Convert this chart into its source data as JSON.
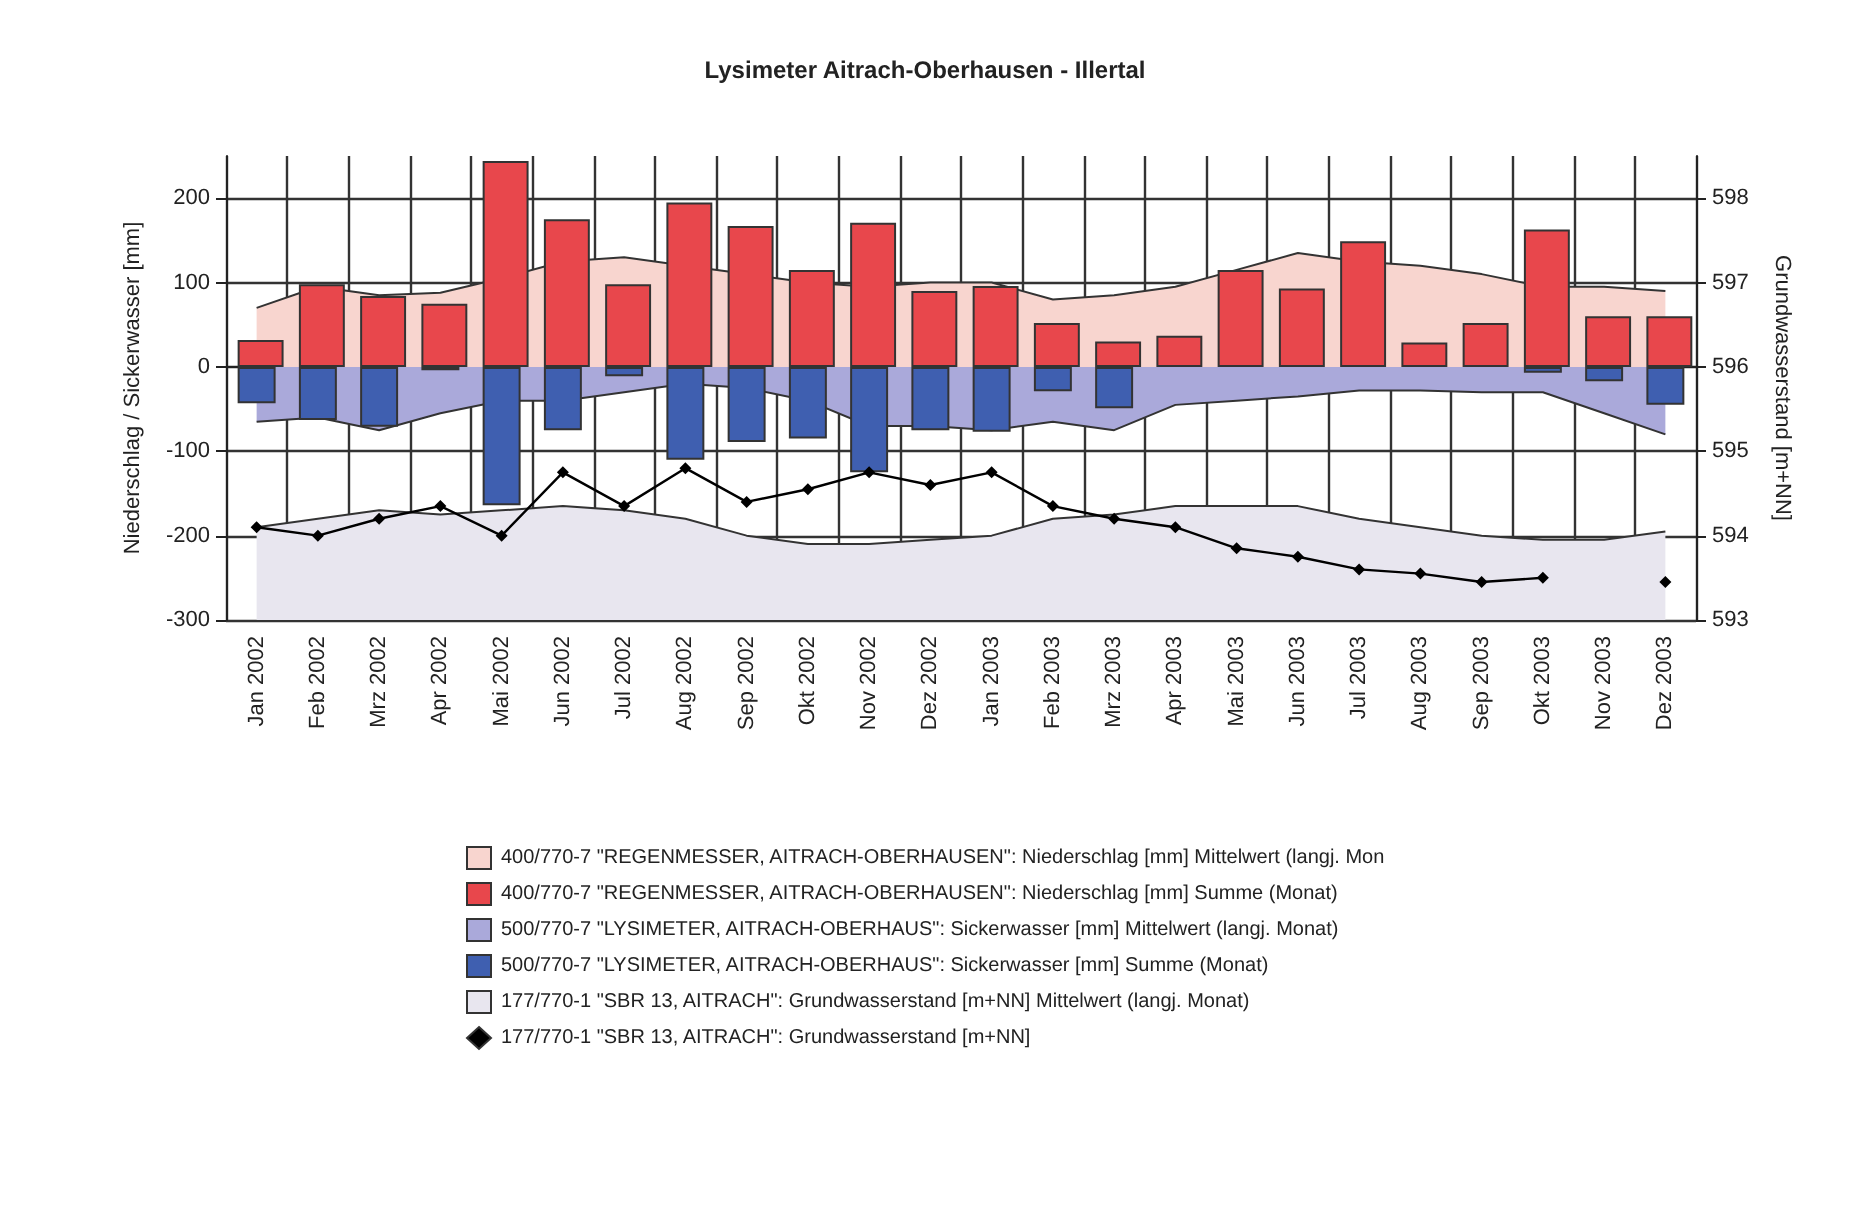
{
  "chart_data": {
    "type": "bar",
    "title": "Lysimeter Aitrach-Oberhausen - Illertal",
    "ylabel": "Niederschlag / Sickerwasser [mm]",
    "y2label": "Grundwasserstand [m+NN]",
    "categories": [
      "Jan 2002",
      "Feb 2002",
      "Mrz 2002",
      "Apr 2002",
      "Mai 2002",
      "Jun 2002",
      "Jul 2002",
      "Aug 2002",
      "Sep 2002",
      "Okt 2002",
      "Nov 2002",
      "Dez 2002",
      "Jan 2003",
      "Feb 2003",
      "Mrz 2003",
      "Apr 2003",
      "Mai 2003",
      "Jun 2003",
      "Jul 2003",
      "Aug 2003",
      "Sep 2003",
      "Okt 2003",
      "Nov 2003",
      "Dez 2003"
    ],
    "series": [
      {
        "name": "400/770-7 \"REGENMESSER, AITRACH-OBERHAUSEN\": Niederschlag [mm] Mittelwert (langj. Mon",
        "type": "area",
        "color": "#f8d5cf",
        "values": [
          70,
          95,
          85,
          88,
          105,
          125,
          130,
          120,
          110,
          100,
          95,
          100,
          100,
          80,
          85,
          95,
          115,
          135,
          125,
          120,
          110,
          95,
          95,
          90
        ]
      },
      {
        "name": "400/770-7 \"REGENMESSER, AITRACH-OBERHAUSEN\": Niederschlag [mm] Summe (Monat)",
        "color": "#e8474c",
        "values": [
          32,
          98,
          84,
          75,
          244,
          175,
          98,
          195,
          167,
          115,
          171,
          90,
          96,
          52,
          30,
          37,
          115,
          93,
          149,
          29,
          52,
          163,
          60,
          60
        ]
      },
      {
        "name": "500/770-7 \"LYSIMETER, AITRACH-OBERHAUS\": Sickerwasser [mm] Mittelwert (langj. Monat)",
        "type": "area",
        "color": "#aaa9da",
        "values": [
          -65,
          -60,
          -75,
          -55,
          -40,
          -40,
          -30,
          -20,
          -25,
          -40,
          -70,
          -70,
          -75,
          -65,
          -75,
          -45,
          -40,
          -35,
          -28,
          -28,
          -30,
          -30,
          -55,
          -80
        ]
      },
      {
        "name": "500/770-7 \"LYSIMETER, AITRACH-OBERHAUS\": Sickerwasser [mm] Summe (Monat)",
        "color": "#3f5fb0",
        "values": [
          -43,
          -63,
          -71,
          -4,
          -164,
          -75,
          -11,
          -110,
          -89,
          -85,
          -125,
          -75,
          -77,
          -29,
          -49,
          null,
          null,
          null,
          null,
          null,
          null,
          -7,
          -17,
          -45
        ]
      },
      {
        "name": "177/770-1 \"SBR 13, AITRACH\": Grundwasserstand [m+NN] Mittelwert (langj. Monat)",
        "type": "area",
        "axis": "y2",
        "color": "#e8e6ef",
        "values": [
          594.1,
          594.2,
          594.3,
          594.25,
          594.3,
          594.35,
          594.3,
          594.2,
          594.0,
          593.9,
          593.9,
          593.95,
          594.0,
          594.2,
          594.25,
          594.35,
          594.35,
          594.35,
          594.2,
          594.1,
          594.0,
          593.95,
          593.95,
          594.05
        ]
      },
      {
        "name": "177/770-1 \"SBR 13, AITRACH\": Grundwasserstand [m+NN]",
        "type": "line",
        "axis": "y2",
        "color": "#000000",
        "marker": "diamond",
        "values": [
          594.1,
          594.0,
          594.2,
          594.35,
          594.0,
          594.75,
          594.35,
          594.8,
          594.4,
          594.55,
          594.75,
          594.6,
          594.75,
          594.35,
          594.2,
          594.1,
          593.85,
          593.75,
          593.6,
          593.55,
          593.45,
          593.5,
          null,
          593.45
        ]
      }
    ],
    "ylim": [
      -300,
      250
    ],
    "yticks": [
      -300,
      -200,
      -100,
      0,
      100,
      200
    ],
    "y2lim": [
      593,
      598.5
    ],
    "y2ticks": [
      593,
      594,
      595,
      596,
      597,
      598
    ],
    "grid": true,
    "legend": "bottom"
  }
}
